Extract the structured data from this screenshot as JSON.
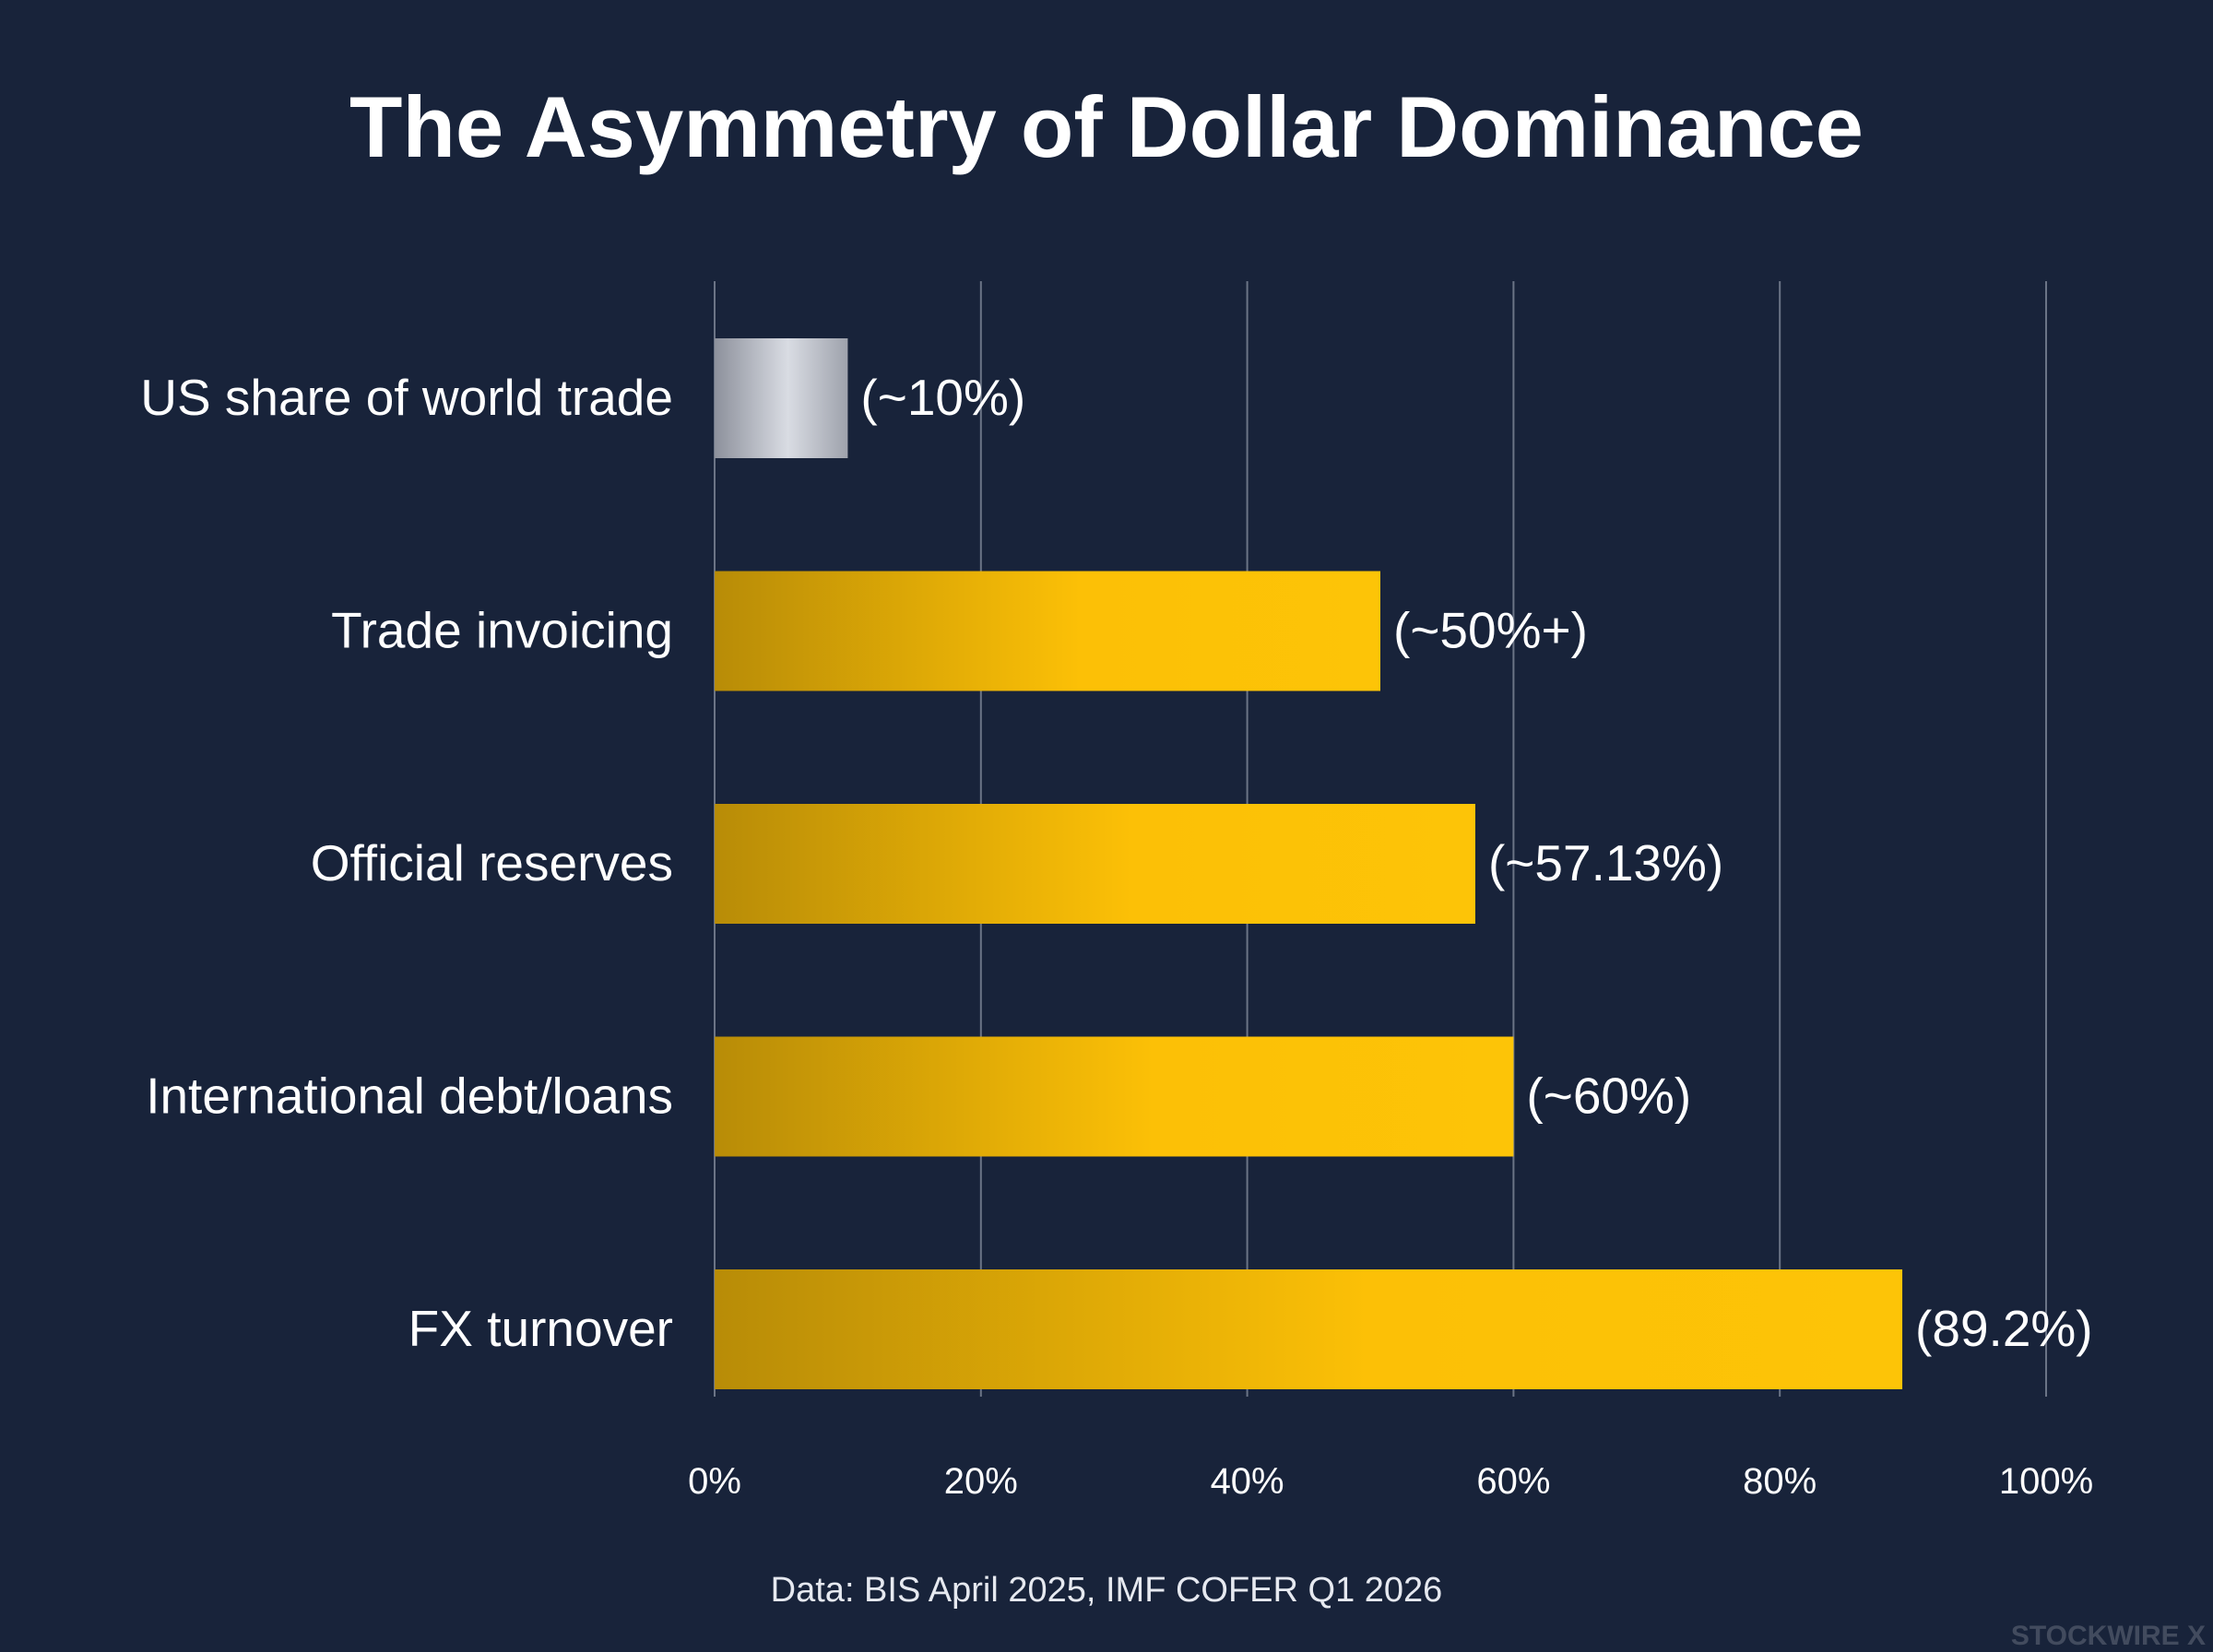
{
  "chart_data": {
    "type": "bar",
    "orientation": "horizontal",
    "title": "The Asymmetry of Dollar Dominance",
    "categories": [
      "US share of world trade",
      "Trade invoicing",
      "Official reserves",
      "International debt/loans",
      "FX turnover"
    ],
    "values": [
      10,
      50,
      57.13,
      60,
      89.2
    ],
    "value_labels": [
      "(~10%)",
      "(~50%+)",
      "(~57.13%)",
      "(~60%)",
      "(89.2%)"
    ],
    "bar_colors": [
      "#b4b7c0",
      "#fcc006",
      "#fcc006",
      "#fcc006",
      "#fcc006"
    ],
    "xlim": [
      0,
      100
    ],
    "x_ticks": [
      0,
      20,
      40,
      60,
      80,
      100
    ],
    "x_tick_labels": [
      "0%",
      "20%",
      "40%",
      "60%",
      "80%",
      "100%"
    ],
    "grid": "vertical",
    "source": "Data: BIS April 2025, IMF COFER Q1 2026"
  },
  "watermark": "STOCKWIRE X",
  "colors": {
    "background": "#18233a",
    "gridline": "#6b7486",
    "text": "#ffffff"
  }
}
